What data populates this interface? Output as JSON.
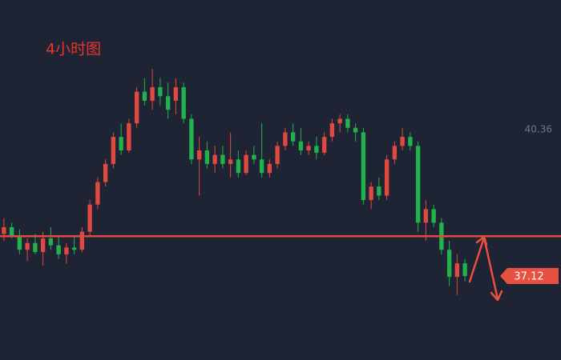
{
  "chart_data": {
    "type": "candlestick",
    "title": "4小时图",
    "ylim": [
      35.26,
      43.23
    ],
    "yticks": [
      40.36
    ],
    "level": 38.0,
    "current_price": 37.12,
    "up_color": "#e0493f",
    "down_color": "#22b14c",
    "ohlc": [
      [
        38.05,
        38.4,
        37.9,
        38.2
      ],
      [
        38.2,
        38.3,
        37.95,
        38.0
      ],
      [
        38.0,
        38.15,
        37.6,
        37.7
      ],
      [
        37.7,
        37.95,
        37.45,
        37.85
      ],
      [
        37.85,
        38.05,
        37.6,
        37.65
      ],
      [
        37.65,
        38.1,
        37.35,
        37.95
      ],
      [
        37.95,
        38.2,
        37.7,
        37.8
      ],
      [
        37.8,
        38.0,
        37.5,
        37.6
      ],
      [
        37.6,
        37.85,
        37.4,
        37.75
      ],
      [
        37.75,
        38.0,
        37.6,
        37.7
      ],
      [
        37.7,
        38.2,
        37.65,
        38.1
      ],
      [
        38.1,
        38.8,
        38.0,
        38.7
      ],
      [
        38.7,
        39.3,
        38.6,
        39.2
      ],
      [
        39.2,
        39.7,
        39.1,
        39.6
      ],
      [
        39.6,
        40.3,
        39.5,
        40.2
      ],
      [
        40.2,
        40.5,
        39.8,
        39.9
      ],
      [
        39.9,
        40.6,
        39.85,
        40.5
      ],
      [
        40.5,
        41.3,
        40.4,
        41.2
      ],
      [
        41.2,
        41.5,
        40.9,
        41.0
      ],
      [
        41.0,
        41.7,
        40.8,
        41.3
      ],
      [
        41.3,
        41.5,
        40.9,
        41.1
      ],
      [
        41.1,
        41.4,
        40.6,
        40.8
      ],
      [
        41.0,
        41.5,
        40.7,
        41.3
      ],
      [
        41.3,
        41.4,
        40.5,
        40.6
      ],
      [
        40.6,
        40.7,
        39.6,
        39.7
      ],
      [
        39.7,
        40.2,
        38.9,
        39.9
      ],
      [
        39.9,
        40.1,
        39.5,
        39.6
      ],
      [
        39.6,
        40.0,
        39.4,
        39.8
      ],
      [
        39.8,
        40.0,
        39.5,
        39.6
      ],
      [
        39.6,
        40.3,
        39.3,
        39.7
      ],
      [
        39.7,
        39.9,
        39.3,
        39.4
      ],
      [
        39.4,
        39.9,
        39.35,
        39.8
      ],
      [
        39.8,
        40.0,
        39.6,
        39.7
      ],
      [
        39.7,
        40.5,
        39.3,
        39.4
      ],
      [
        39.4,
        39.7,
        39.3,
        39.6
      ],
      [
        39.6,
        40.1,
        39.5,
        40.0
      ],
      [
        40.0,
        40.4,
        39.9,
        40.3
      ],
      [
        40.3,
        40.5,
        40.0,
        40.1
      ],
      [
        40.1,
        40.4,
        39.8,
        39.9
      ],
      [
        39.9,
        40.1,
        39.8,
        40.0
      ],
      [
        40.0,
        40.2,
        39.7,
        39.85
      ],
      [
        39.85,
        40.3,
        39.8,
        40.2
      ],
      [
        40.2,
        40.6,
        40.1,
        40.5
      ],
      [
        40.5,
        40.7,
        40.3,
        40.6
      ],
      [
        40.6,
        40.7,
        40.3,
        40.4
      ],
      [
        40.4,
        40.5,
        40.1,
        40.3
      ],
      [
        40.3,
        40.4,
        38.7,
        38.8
      ],
      [
        38.8,
        39.2,
        38.6,
        39.1
      ],
      [
        39.1,
        39.3,
        38.8,
        38.9
      ],
      [
        38.9,
        39.8,
        38.8,
        39.7
      ],
      [
        39.7,
        40.1,
        39.6,
        40.0
      ],
      [
        40.0,
        40.4,
        39.9,
        40.2
      ],
      [
        40.2,
        40.3,
        39.9,
        40.0
      ],
      [
        40.0,
        40.1,
        38.1,
        38.3
      ],
      [
        38.3,
        38.8,
        37.9,
        38.6
      ],
      [
        38.6,
        38.7,
        38.2,
        38.3
      ],
      [
        38.3,
        38.4,
        37.6,
        37.7
      ],
      [
        37.7,
        37.9,
        36.9,
        37.1
      ],
      [
        37.1,
        37.6,
        36.7,
        37.4
      ],
      [
        37.4,
        37.5,
        37.0,
        37.12
      ]
    ]
  }
}
